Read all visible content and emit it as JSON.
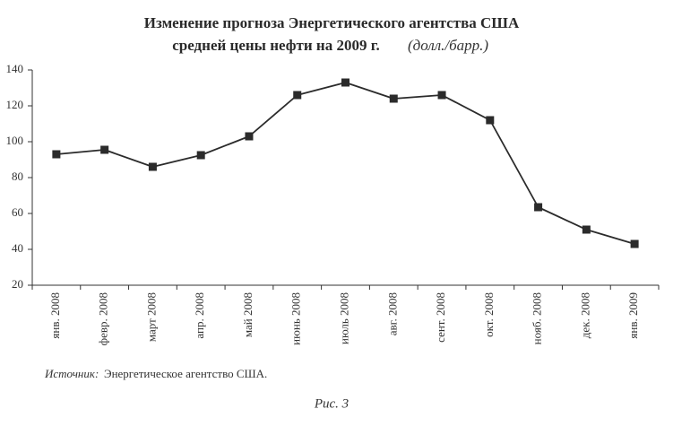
{
  "chart_data": {
    "type": "line",
    "title": [
      "Изменение прогноза Энергетического агентства США",
      "средней цены нефти на 2009 г."
    ],
    "unit": "(долл./барр.)",
    "categories": [
      "янв. 2008",
      "февр. 2008",
      "март 2008",
      "апр. 2008",
      "май 2008",
      "июнь 2008",
      "июль 2008",
      "авг. 2008",
      "сент. 2008",
      "окт. 2008",
      "нояб. 2008",
      "дек. 2008",
      "янв. 2009"
    ],
    "values": [
      93,
      95.5,
      86,
      92.5,
      103,
      126,
      133,
      124,
      126,
      112,
      63.5,
      51,
      43
    ],
    "color": "#2b2b2b",
    "ylim": [
      20,
      140
    ],
    "yticks": [
      20,
      40,
      60,
      80,
      100,
      120,
      140
    ],
    "grid": false,
    "source_label": "Источник:",
    "source": "Энергетическое агентство США.",
    "caption": "Рис. 3"
  }
}
